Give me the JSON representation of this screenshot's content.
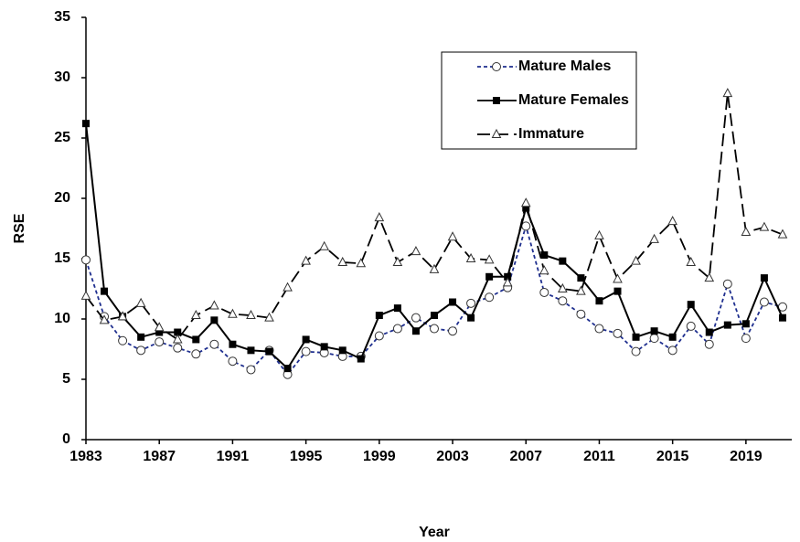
{
  "chart_data": {
    "type": "line",
    "x_label": "Year",
    "y_label": "RSE",
    "x": [
      1983,
      1984,
      1985,
      1986,
      1987,
      1988,
      1989,
      1990,
      1991,
      1992,
      1993,
      1994,
      1995,
      1996,
      1997,
      1998,
      1999,
      2000,
      2001,
      2002,
      2003,
      2004,
      2005,
      2006,
      2007,
      2008,
      2009,
      2010,
      2011,
      2012,
      2013,
      2014,
      2015,
      2016,
      2017,
      2018,
      2019,
      2020,
      2021
    ],
    "xlim": [
      1983,
      2021.5
    ],
    "xticks": [
      1983,
      1987,
      1991,
      1995,
      1999,
      2003,
      2007,
      2011,
      2015,
      2019
    ],
    "ylim": [
      0,
      35
    ],
    "yticks": [
      0,
      5,
      10,
      15,
      20,
      25,
      30,
      35
    ],
    "grid": false,
    "series": [
      {
        "name": "Mature Males",
        "color": "#1f2f8f",
        "line_style": "dashed",
        "marker": "circle",
        "values": [
          14.9,
          10.2,
          8.2,
          7.4,
          8.1,
          7.6,
          7.1,
          7.9,
          6.5,
          5.8,
          7.4,
          5.4,
          7.3,
          7.2,
          6.9,
          6.9,
          8.6,
          9.2,
          10.1,
          9.2,
          9.0,
          11.3,
          11.8,
          12.6,
          17.7,
          12.2,
          11.5,
          10.4,
          9.2,
          8.8,
          7.3,
          8.4,
          7.4,
          9.4,
          7.9,
          12.9,
          8.4,
          11.4,
          11.0
        ]
      },
      {
        "name": "Mature Females",
        "color": "#000000",
        "line_style": "solid",
        "marker": "square",
        "values": [
          26.2,
          12.3,
          10.2,
          8.5,
          8.9,
          8.9,
          8.3,
          9.9,
          7.9,
          7.4,
          7.3,
          5.9,
          8.3,
          7.7,
          7.4,
          6.7,
          10.3,
          10.9,
          9.0,
          10.3,
          11.4,
          10.1,
          13.5,
          13.5,
          19.2,
          15.3,
          14.8,
          13.4,
          11.5,
          12.3,
          8.5,
          9.0,
          8.5,
          11.2,
          8.9,
          9.5,
          9.6,
          13.4,
          10.1
        ]
      },
      {
        "name": "Immature",
        "color": "#000000",
        "line_style": "longdash",
        "marker": "triangle",
        "values": [
          11.9,
          9.9,
          10.2,
          11.3,
          9.3,
          8.3,
          10.3,
          11.1,
          10.4,
          10.3,
          10.1,
          12.6,
          14.8,
          16.0,
          14.7,
          14.6,
          18.4,
          14.7,
          15.6,
          14.1,
          16.8,
          15.0,
          14.9,
          13.0,
          19.6,
          14.0,
          12.5,
          12.3,
          16.9,
          13.3,
          14.8,
          16.6,
          18.1,
          14.7,
          13.4,
          28.7,
          17.2,
          17.6,
          17.0
        ]
      }
    ]
  }
}
